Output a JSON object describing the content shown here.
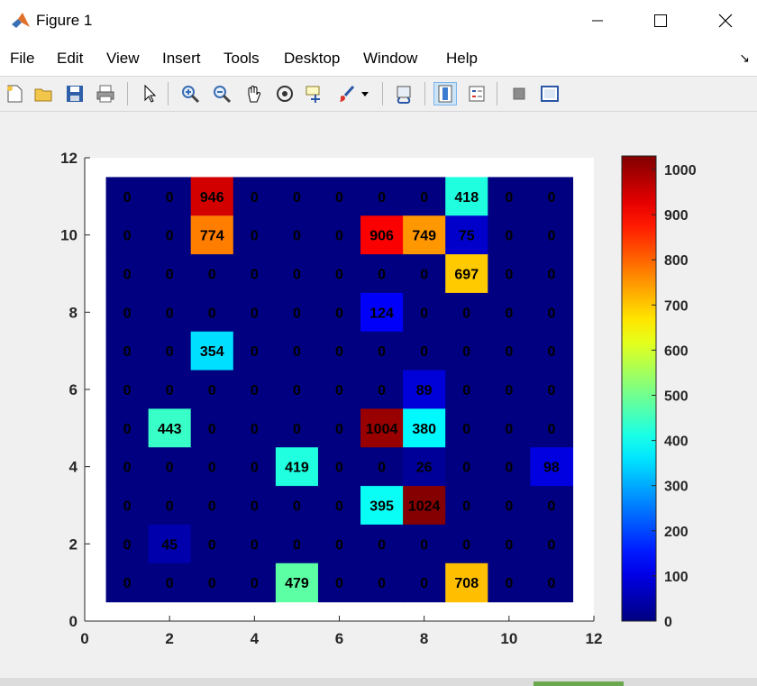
{
  "window": {
    "title": "Figure 1",
    "controls": [
      "minimize",
      "maximize",
      "close"
    ]
  },
  "menu": {
    "items": [
      "File",
      "Edit",
      "View",
      "Insert",
      "Tools",
      "Desktop",
      "Window",
      "Help"
    ]
  },
  "toolbar": {
    "buttons": [
      "new-figure-icon",
      "open-file-icon",
      "save-icon",
      "print-icon",
      "pointer-icon",
      "zoom-in-icon",
      "zoom-out-icon",
      "pan-hand-icon",
      "rotate-3d-icon",
      "data-cursor-icon",
      "brush-icon",
      "brush-dropdown-icon",
      "link-plot-icon",
      "colorbar-icon",
      "legend-icon",
      "hide-plot-tools-icon",
      "show-plot-tools-icon"
    ]
  },
  "chart_data": {
    "type": "heatmap",
    "x_ticks": [
      "0",
      "2",
      "4",
      "6",
      "8",
      "10",
      "12"
    ],
    "y_ticks": [
      "0",
      "2",
      "4",
      "6",
      "8",
      "10",
      "12"
    ],
    "xlim": [
      0,
      12
    ],
    "ylim": [
      0,
      12
    ],
    "colormap": "jet",
    "clim": [
      0,
      1030
    ],
    "colorbar_ticks": [
      "0",
      "100",
      "200",
      "300",
      "400",
      "500",
      "600",
      "700",
      "800",
      "900",
      "1000"
    ],
    "cell_labels": [
      [
        "0",
        "0",
        "946",
        "0",
        "0",
        "0",
        "0",
        "0",
        "418",
        "0",
        "0"
      ],
      [
        "0",
        "0",
        "774",
        "0",
        "0",
        "0",
        "906",
        "749",
        "75",
        "0",
        "0"
      ],
      [
        "0",
        "0",
        "0",
        "0",
        "0",
        "0",
        "0",
        "0",
        "697",
        "0",
        "0"
      ],
      [
        "0",
        "0",
        "0",
        "0",
        "0",
        "0",
        "124",
        "0",
        "0",
        "0",
        "0"
      ],
      [
        "0",
        "0",
        "354",
        "0",
        "0",
        "0",
        "0",
        "0",
        "0",
        "0",
        "0"
      ],
      [
        "0",
        "0",
        "0",
        "0",
        "0",
        "0",
        "0",
        "89",
        "0",
        "0",
        "0"
      ],
      [
        "0",
        "443",
        "0",
        "0",
        "0",
        "0",
        "1004",
        "380",
        "0",
        "0",
        "0"
      ],
      [
        "0",
        "0",
        "0",
        "0",
        "419",
        "0",
        "0",
        "26",
        "0",
        "0",
        "98"
      ],
      [
        "0",
        "0",
        "0",
        "0",
        "0",
        "0",
        "395",
        "1024",
        "0",
        "0",
        "0"
      ],
      [
        "0",
        "45",
        "0",
        "0",
        "0",
        "0",
        "0",
        "0",
        "0",
        "0",
        "0"
      ],
      [
        "0",
        "0",
        "0",
        "0",
        "479",
        "0",
        "0",
        "0",
        "708",
        "0",
        "0"
      ]
    ],
    "grid": false,
    "legend": "none"
  }
}
